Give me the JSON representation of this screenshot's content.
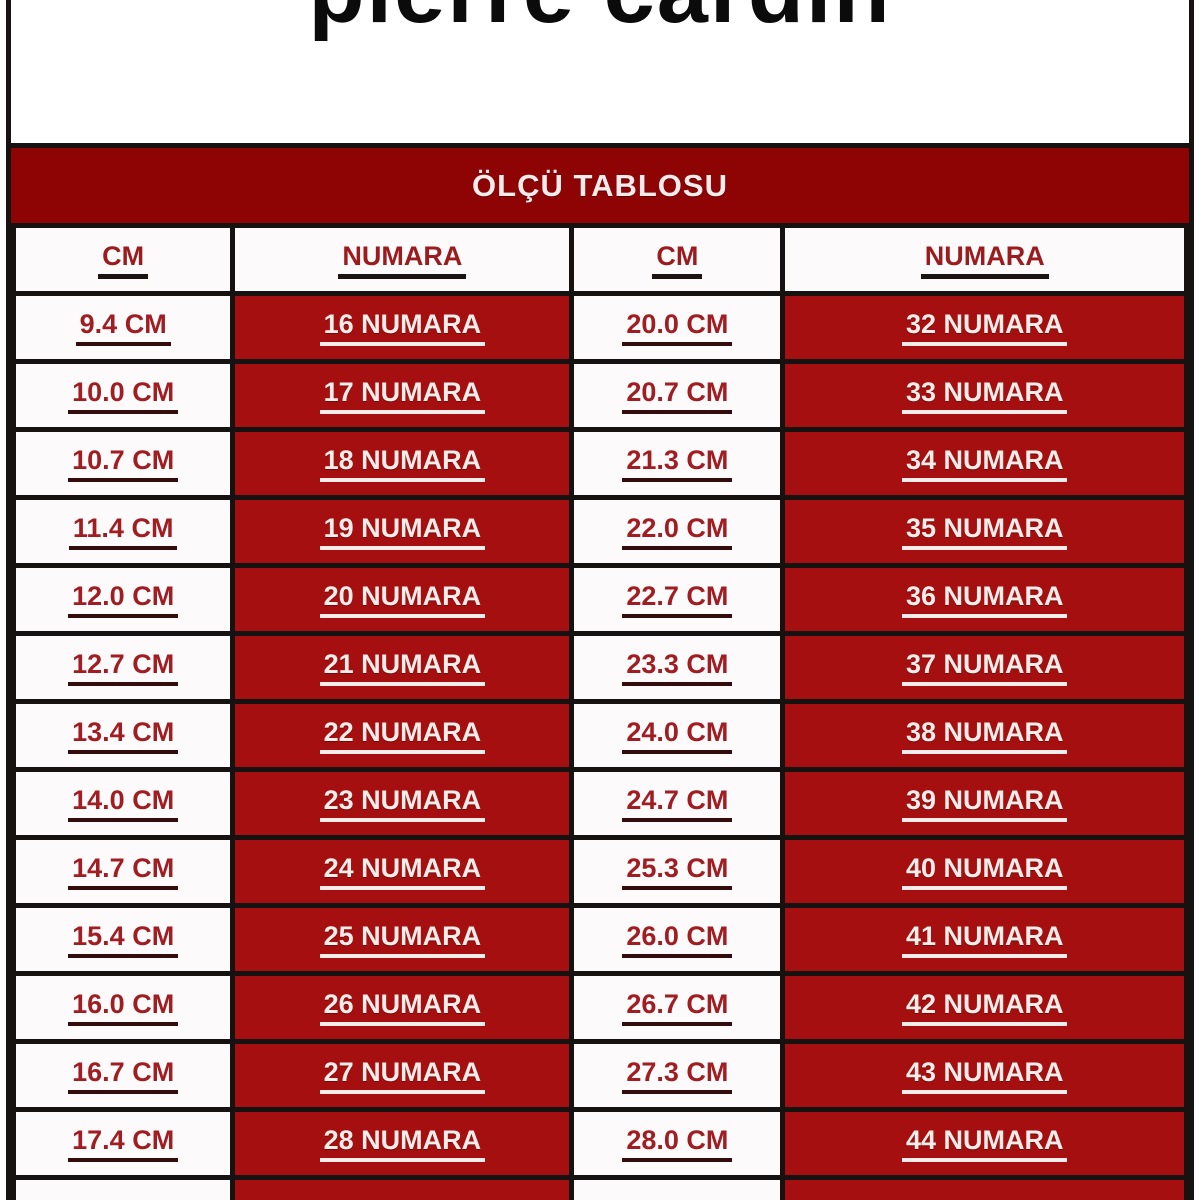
{
  "brand": {
    "logo_text": "pierre cardin"
  },
  "banner": {
    "title": "ÖLÇÜ TABLOSU"
  },
  "table": {
    "columns": [
      "CM",
      "NUMARA",
      "CM",
      "NUMARA"
    ],
    "rows": [
      [
        "9.4 CM",
        "16 NUMARA",
        "20.0 CM",
        "32 NUMARA"
      ],
      [
        "10.0 CM",
        "17 NUMARA",
        "20.7 CM",
        "33 NUMARA"
      ],
      [
        "10.7 CM",
        "18 NUMARA",
        "21.3 CM",
        "34 NUMARA"
      ],
      [
        "11.4 CM",
        "19 NUMARA",
        "22.0 CM",
        "35 NUMARA"
      ],
      [
        "12.0 CM",
        "20 NUMARA",
        "22.7 CM",
        "36 NUMARA"
      ],
      [
        "12.7 CM",
        "21 NUMARA",
        "23.3 CM",
        "37 NUMARA"
      ],
      [
        "13.4 CM",
        "22 NUMARA",
        "24.0 CM",
        "38 NUMARA"
      ],
      [
        "14.0 CM",
        "23 NUMARA",
        "24.7 CM",
        "39 NUMARA"
      ],
      [
        "14.7 CM",
        "24 NUMARA",
        "25.3 CM",
        "40 NUMARA"
      ],
      [
        "15.4 CM",
        "25 NUMARA",
        "26.0 CM",
        "41 NUMARA"
      ],
      [
        "16.0 CM",
        "26 NUMARA",
        "26.7 CM",
        "42 NUMARA"
      ],
      [
        "16.7 CM",
        "27 NUMARA",
        "27.3 CM",
        "43 NUMARA"
      ],
      [
        "17.4 CM",
        "28 NUMARA",
        "28.0 CM",
        "44 NUMARA"
      ]
    ],
    "partial_row_visible": true
  },
  "colors": {
    "banner_red": "#8E0404",
    "cell_red": "#A50F0F",
    "cm_text_red": "#A01D22",
    "numara_text": "#F6EDEA",
    "border_black": "#171212",
    "white_cell": "#FCFAFA"
  }
}
